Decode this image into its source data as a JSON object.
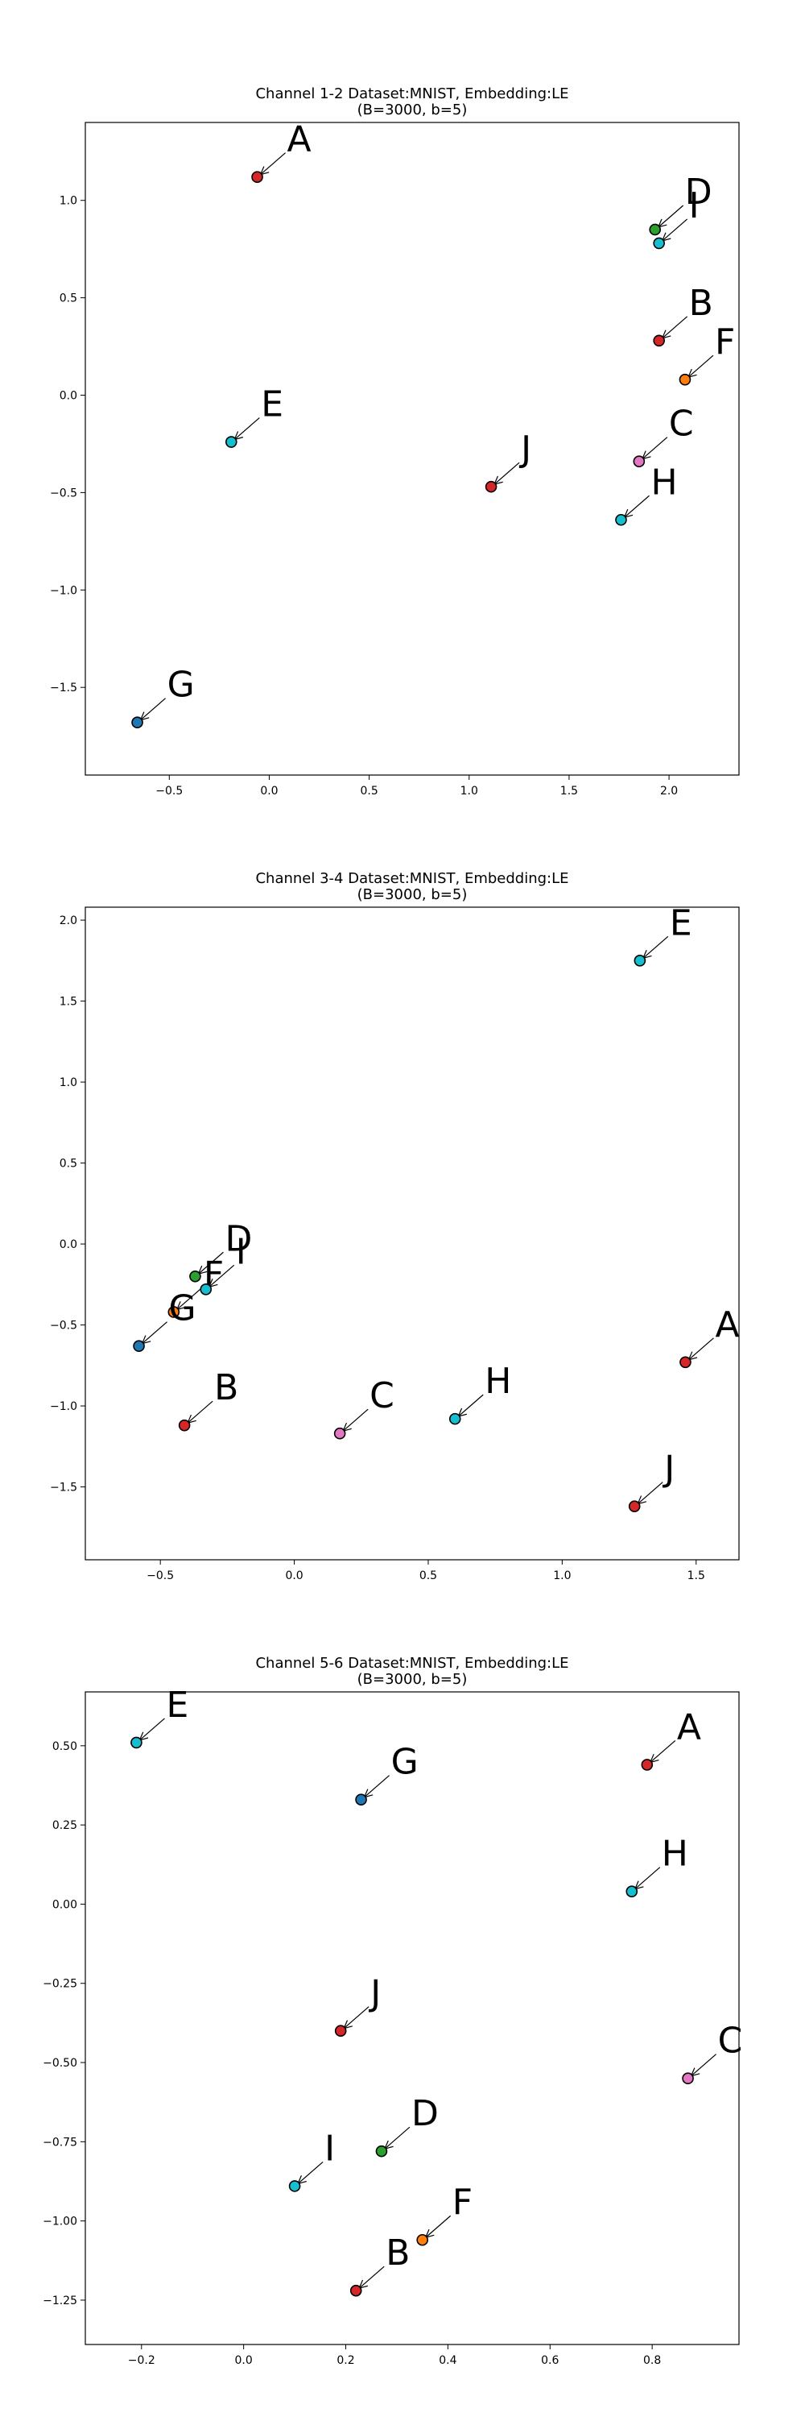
{
  "chart_data": [
    {
      "type": "scatter",
      "title": "Channel 1-2 Dataset:MNIST, Embedding:LE",
      "subtitle": "(B=3000, b=5)",
      "xlabel": "",
      "ylabel": "",
      "xlim": [
        -0.92,
        2.35
      ],
      "ylim": [
        -1.95,
        1.4
      ],
      "xticks": [
        -0.5,
        0.0,
        0.5,
        1.0,
        1.5,
        2.0
      ],
      "xtick_labels": [
        "−0.5",
        "0.0",
        "0.5",
        "1.0",
        "1.5",
        "2.0"
      ],
      "yticks": [
        -1.5,
        -1.0,
        -0.5,
        0.0,
        0.5,
        1.0
      ],
      "ytick_labels": [
        "−1.5",
        "−1.0",
        "−0.5",
        "0.0",
        "0.5",
        "1.0"
      ],
      "grid": false,
      "points": [
        {
          "label": "A",
          "x": -0.06,
          "y": 1.12,
          "color": "#d62728"
        },
        {
          "label": "B",
          "x": 1.95,
          "y": 0.28,
          "color": "#d62728"
        },
        {
          "label": "C",
          "x": 1.85,
          "y": -0.34,
          "color": "#e377c2"
        },
        {
          "label": "D",
          "x": 1.93,
          "y": 0.85,
          "color": "#2ca02c"
        },
        {
          "label": "E",
          "x": -0.19,
          "y": -0.24,
          "color": "#17becf"
        },
        {
          "label": "F",
          "x": 2.08,
          "y": 0.08,
          "color": "#ff7f0e"
        },
        {
          "label": "G",
          "x": -0.66,
          "y": -1.68,
          "color": "#1f77b4"
        },
        {
          "label": "H",
          "x": 1.76,
          "y": -0.64,
          "color": "#17becf"
        },
        {
          "label": "I",
          "x": 1.95,
          "y": 0.78,
          "color": "#17becf"
        },
        {
          "label": "J",
          "x": 1.11,
          "y": -0.47,
          "color": "#d62728"
        }
      ]
    },
    {
      "type": "scatter",
      "title": "Channel 3-4 Dataset:MNIST, Embedding:LE",
      "subtitle": "(B=3000, b=5)",
      "xlabel": "",
      "ylabel": "",
      "xlim": [
        -0.78,
        1.66
      ],
      "ylim": [
        -1.95,
        2.08
      ],
      "xticks": [
        -0.5,
        0.0,
        0.5,
        1.0,
        1.5
      ],
      "xtick_labels": [
        "−0.5",
        "0.0",
        "0.5",
        "1.0",
        "1.5"
      ],
      "yticks": [
        -1.5,
        -1.0,
        -0.5,
        0.0,
        0.5,
        1.0,
        1.5,
        2.0
      ],
      "ytick_labels": [
        "−1.5",
        "−1.0",
        "−0.5",
        "0.0",
        "0.5",
        "1.0",
        "1.5",
        "2.0"
      ],
      "grid": false,
      "points": [
        {
          "label": "A",
          "x": 1.46,
          "y": -0.73,
          "color": "#d62728"
        },
        {
          "label": "B",
          "x": -0.41,
          "y": -1.12,
          "color": "#d62728"
        },
        {
          "label": "C",
          "x": 0.17,
          "y": -1.17,
          "color": "#e377c2"
        },
        {
          "label": "D",
          "x": -0.37,
          "y": -0.2,
          "color": "#2ca02c"
        },
        {
          "label": "E",
          "x": 1.29,
          "y": 1.75,
          "color": "#17becf"
        },
        {
          "label": "F",
          "x": -0.45,
          "y": -0.42,
          "color": "#ff7f0e"
        },
        {
          "label": "G",
          "x": -0.58,
          "y": -0.63,
          "color": "#1f77b4"
        },
        {
          "label": "H",
          "x": 0.6,
          "y": -1.08,
          "color": "#17becf"
        },
        {
          "label": "I",
          "x": -0.33,
          "y": -0.28,
          "color": "#17becf"
        },
        {
          "label": "J",
          "x": 1.27,
          "y": -1.62,
          "color": "#d62728"
        }
      ]
    },
    {
      "type": "scatter",
      "title": "Channel 5-6 Dataset:MNIST, Embedding:LE",
      "subtitle": "(B=3000, b=5)",
      "xlabel": "",
      "ylabel": "",
      "xlim": [
        -0.31,
        0.97
      ],
      "ylim": [
        -1.39,
        0.67
      ],
      "xticks": [
        -0.2,
        0.0,
        0.2,
        0.4,
        0.6,
        0.8
      ],
      "xtick_labels": [
        "−0.2",
        "0.0",
        "0.2",
        "0.4",
        "0.6",
        "0.8"
      ],
      "yticks": [
        -1.25,
        -1.0,
        -0.75,
        -0.5,
        -0.25,
        0.0,
        0.25,
        0.5
      ],
      "ytick_labels": [
        "−1.25",
        "−1.00",
        "−0.75",
        "−0.50",
        "−0.25",
        "0.00",
        "0.25",
        "0.50"
      ],
      "grid": false,
      "points": [
        {
          "label": "A",
          "x": 0.79,
          "y": 0.44,
          "color": "#d62728"
        },
        {
          "label": "B",
          "x": 0.22,
          "y": -1.22,
          "color": "#d62728"
        },
        {
          "label": "C",
          "x": 0.87,
          "y": -0.55,
          "color": "#e377c2"
        },
        {
          "label": "D",
          "x": 0.27,
          "y": -0.78,
          "color": "#2ca02c"
        },
        {
          "label": "E",
          "x": -0.21,
          "y": 0.51,
          "color": "#17becf"
        },
        {
          "label": "F",
          "x": 0.35,
          "y": -1.06,
          "color": "#ff7f0e"
        },
        {
          "label": "G",
          "x": 0.23,
          "y": 0.33,
          "color": "#1f77b4"
        },
        {
          "label": "H",
          "x": 0.76,
          "y": 0.04,
          "color": "#17becf"
        },
        {
          "label": "I",
          "x": 0.1,
          "y": -0.89,
          "color": "#17becf"
        },
        {
          "label": "J",
          "x": 0.19,
          "y": -0.4,
          "color": "#d62728"
        }
      ]
    }
  ]
}
